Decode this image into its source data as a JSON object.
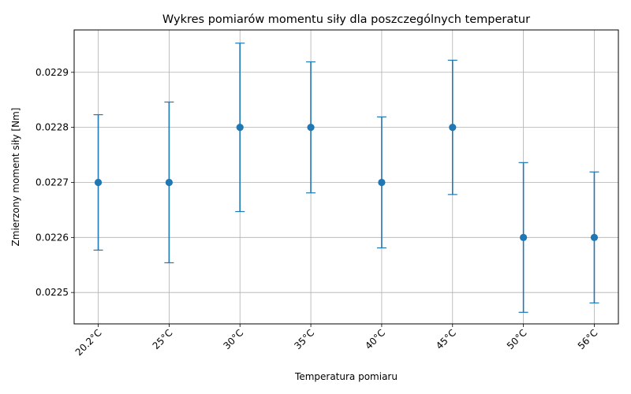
{
  "chart_data": {
    "type": "scatter",
    "title": "Wykres pomiarów momentu siły dla poszczególnych temperatur",
    "xlabel": "Temperatura pomiaru",
    "ylabel": "Zmierzony moment siły [Nm]",
    "categories": [
      "20.2°C",
      "25°C",
      "30°C",
      "35°C",
      "40°C",
      "45°C",
      "50°C",
      "56°C"
    ],
    "values": [
      0.0227,
      0.0227,
      0.0228,
      0.0228,
      0.0227,
      0.0228,
      0.0226,
      0.0226
    ],
    "errors": [
      0.000123,
      0.000146,
      0.000153,
      0.000119,
      0.000119,
      0.000122,
      0.000136,
      0.000119
    ],
    "ylim": [
      0.022443,
      0.022977
    ],
    "yticks": [
      0.0225,
      0.0226,
      0.0227,
      0.0228,
      0.0229
    ],
    "ytick_labels": [
      "0.0225",
      "0.0226",
      "0.0227",
      "0.0228",
      "0.0229"
    ],
    "grid": true,
    "x_tick_rotation": 45,
    "color": "#1f77b4"
  }
}
